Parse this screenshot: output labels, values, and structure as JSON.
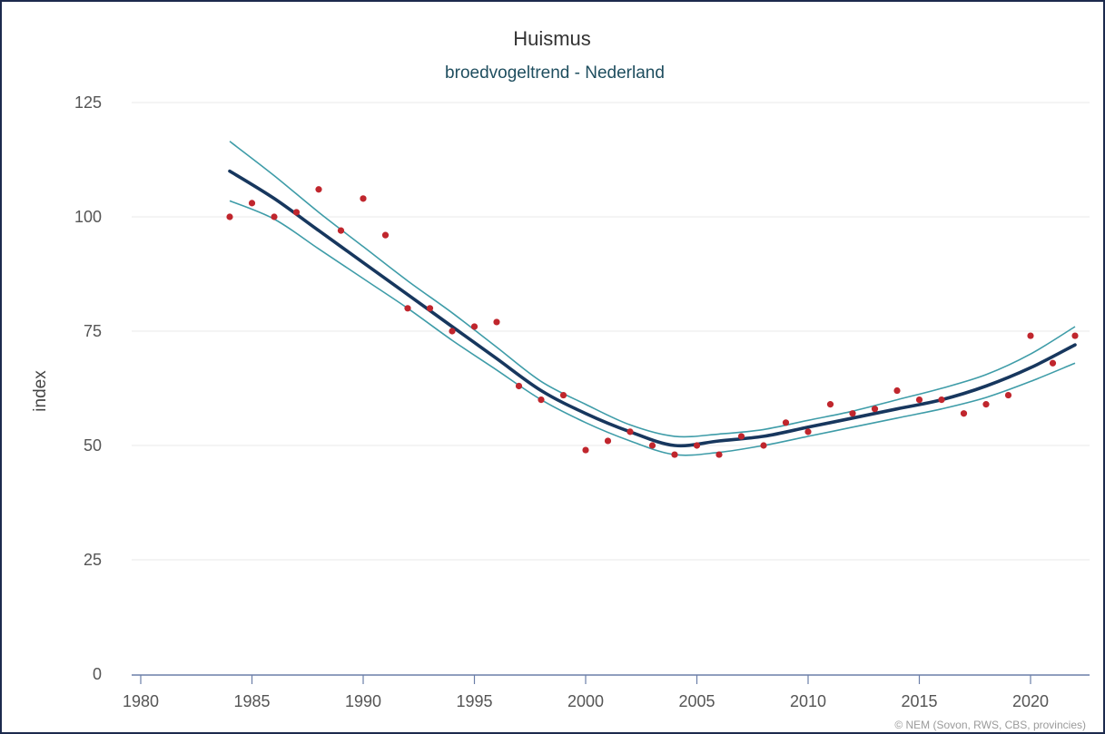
{
  "chart_data": {
    "type": "line",
    "title": "Huismus",
    "subtitle": "broedvogeltrend - Nederland",
    "xlabel": "",
    "ylabel": "index",
    "credit": "© NEM (Sovon, RWS, CBS, provincies)",
    "xlim": [
      1978,
      2022.5
    ],
    "ylim": [
      0,
      125
    ],
    "xticks": [
      1980,
      1985,
      1990,
      1995,
      2000,
      2005,
      2010,
      2015,
      2020
    ],
    "yticks": [
      0,
      25,
      50,
      75,
      100,
      125
    ],
    "grid": true,
    "legend": "none",
    "colors": {
      "trend": "#17375e",
      "band": "#3e9ca8",
      "points": "#c0262d",
      "axis": "#6b7ea8",
      "frame": "#1c2a4d"
    },
    "points": {
      "x": [
        1984,
        1985,
        1986,
        1987,
        1988,
        1989,
        1990,
        1991,
        1992,
        1993,
        1994,
        1995,
        1996,
        1997,
        1998,
        1999,
        2000,
        2001,
        2002,
        2003,
        2004,
        2005,
        2006,
        2007,
        2008,
        2009,
        2010,
        2011,
        2012,
        2013,
        2014,
        2015,
        2016,
        2017,
        2018,
        2019,
        2020,
        2021,
        2022
      ],
      "y": [
        100,
        103,
        100,
        101,
        106,
        97,
        104,
        96,
        80,
        80,
        75,
        76,
        77,
        63,
        60,
        61,
        49,
        51,
        53,
        50,
        48,
        50,
        48,
        52,
        50,
        55,
        53,
        59,
        57,
        58,
        62,
        60,
        60,
        57,
        59,
        61,
        74,
        68,
        74
      ]
    },
    "series": [
      {
        "x": [
          1984,
          1986,
          1988,
          1990,
          1992,
          1994,
          1996,
          1998,
          2000,
          2002,
          2004,
          2006,
          2008,
          2010,
          2012,
          2014,
          2016,
          2018,
          2020,
          2022
        ],
        "values": [
          110,
          104,
          97,
          90,
          83,
          76,
          69,
          62,
          57,
          53,
          50,
          51,
          52,
          54,
          56,
          58,
          60,
          63,
          67,
          72
        ]
      },
      {
        "x": [
          1984,
          1986,
          1988,
          1990,
          1992,
          1994,
          1996,
          1998,
          2000,
          2002,
          2004,
          2006,
          2008,
          2010,
          2012,
          2014,
          2016,
          2018,
          2020,
          2022
        ],
        "values": [
          116.5,
          109,
          101,
          93.5,
          86,
          79,
          71.5,
          64,
          59,
          54.5,
          52,
          52.5,
          53.5,
          55.5,
          57.5,
          60,
          62.5,
          65.5,
          70,
          76
        ]
      },
      {
        "x": [
          1984,
          1986,
          1988,
          1990,
          1992,
          1994,
          1996,
          1998,
          2000,
          2002,
          2004,
          2006,
          2008,
          2010,
          2012,
          2014,
          2016,
          2018,
          2020,
          2022
        ],
        "values": [
          103.5,
          99.5,
          93,
          86.5,
          80,
          73,
          66.5,
          60,
          55,
          51,
          48,
          48.5,
          50,
          52,
          54,
          56,
          58,
          60.5,
          64,
          68
        ]
      }
    ]
  }
}
